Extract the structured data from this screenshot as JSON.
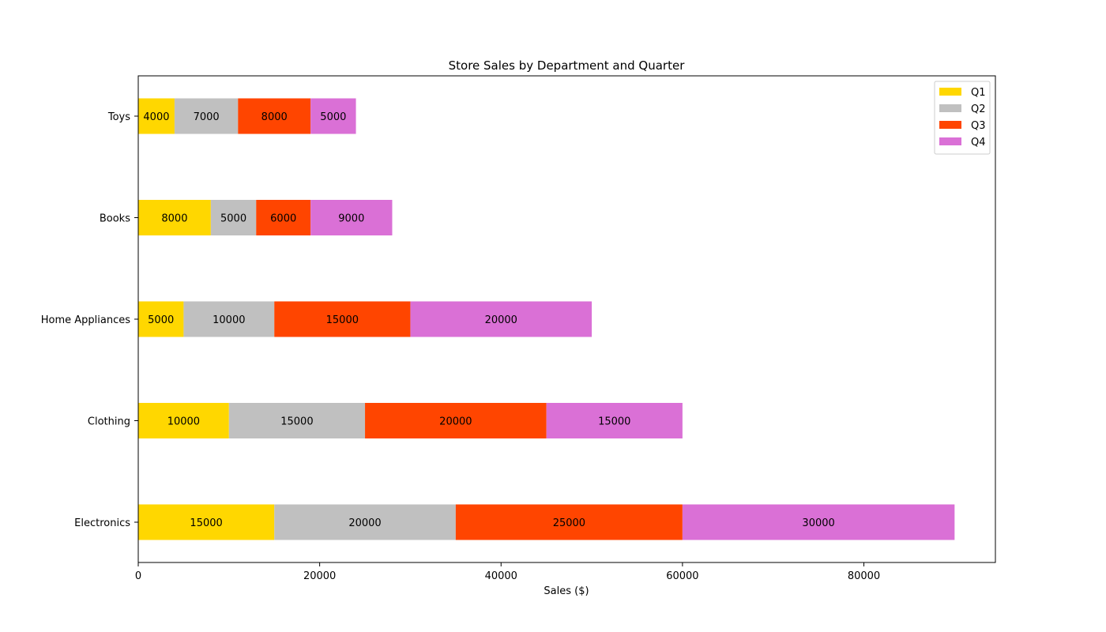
{
  "chart_data": {
    "type": "bar",
    "orientation": "horizontal",
    "stacked": true,
    "title": "Store Sales by Department and Quarter",
    "xlabel": "Sales ($)",
    "ylabel": "",
    "xlim": [
      0,
      94500
    ],
    "xticks": [
      0,
      20000,
      40000,
      60000,
      80000
    ],
    "categories": [
      "Electronics",
      "Clothing",
      "Home Appliances",
      "Books",
      "Toys"
    ],
    "series": [
      {
        "name": "Q1",
        "color": "#FFD700",
        "values": [
          15000,
          10000,
          5000,
          8000,
          4000
        ]
      },
      {
        "name": "Q2",
        "color": "#C0C0C0",
        "values": [
          20000,
          15000,
          10000,
          5000,
          7000
        ]
      },
      {
        "name": "Q3",
        "color": "#FF4500",
        "values": [
          25000,
          20000,
          15000,
          6000,
          8000
        ]
      },
      {
        "name": "Q4",
        "color": "#DA70D6",
        "values": [
          30000,
          15000,
          20000,
          9000,
          5000
        ]
      }
    ],
    "legend": "top-right",
    "grid": false
  }
}
